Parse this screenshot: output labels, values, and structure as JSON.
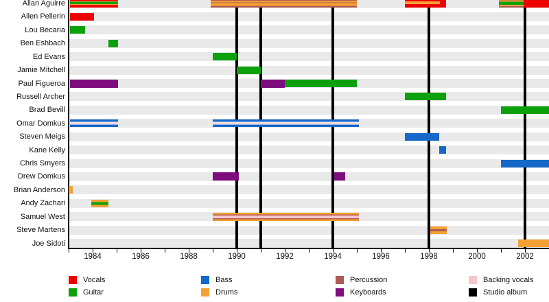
{
  "colors": {
    "vocals": "#ee0000",
    "guitar": "#0ca10c",
    "bass": "#1668c8",
    "drums": "#f4a133",
    "percussion": "#ad5a52",
    "keyboards": "#7d0c7d",
    "backing_vocals": "#f7c6cd",
    "studio_album": "#000000",
    "white": "#ffffff"
  },
  "chart_data": {
    "type": "timeline",
    "x_axis": {
      "year_start": 1983,
      "year_end": 2003,
      "tick_step": 1,
      "labeled_years": [
        1984,
        1986,
        1988,
        1990,
        1992,
        1994,
        1996,
        1998,
        2000,
        2002
      ]
    },
    "album_release_years": [
      1990,
      1991,
      1994,
      1998,
      2002
    ],
    "members": [
      {
        "name": "Allan Aguirre",
        "bars": [
          {
            "start": 1983.05,
            "end": 1985.05,
            "h": 12,
            "stripes": [
              [
                "vocals",
                2.5
              ],
              [
                "drums",
                1
              ],
              [
                "guitar",
                3.5
              ],
              [
                "drums",
                1
              ],
              [
                "vocals",
                4
              ]
            ]
          },
          {
            "start": 1988.9,
            "end": 1995.0,
            "h": 12,
            "stripes": [
              [
                "percussion",
                2
              ],
              [
                "drums",
                2.5
              ],
              [
                "percussion",
                1
              ],
              [
                "drums",
                4
              ],
              [
                "percussion",
                2.5
              ]
            ]
          },
          {
            "start": 1997.0,
            "end": 1998.72,
            "stripes": [
              [
                "vocals",
                1
              ]
            ]
          },
          {
            "start": 1997.0,
            "end": 1998.45,
            "h": 4,
            "dy": -1.5,
            "stripes": [
              [
                "drums",
                1
              ]
            ]
          },
          {
            "start": 2000.92,
            "end": 2001.95,
            "h": 12,
            "stripes": [
              [
                "percussion",
                1.5
              ],
              [
                "drums",
                2
              ],
              [
                "guitar",
                4.5
              ],
              [
                "drums",
                2
              ],
              [
                "percussion",
                2
              ]
            ]
          },
          {
            "start": 2001.95,
            "end": 2003.1,
            "stripes": [
              [
                "vocals",
                1
              ]
            ]
          }
        ]
      },
      {
        "name": "Allen Pellerin",
        "bars": [
          {
            "start": 1983.05,
            "end": 1984.05,
            "stripes": [
              [
                "vocals",
                1
              ]
            ]
          }
        ]
      },
      {
        "name": "Lou Becaria",
        "bars": [
          {
            "start": 1983.05,
            "end": 1983.68,
            "stripes": [
              [
                "guitar",
                1
              ]
            ]
          }
        ]
      },
      {
        "name": "Ben Eshbach",
        "bars": [
          {
            "start": 1984.65,
            "end": 1985.05,
            "stripes": [
              [
                "guitar",
                1
              ]
            ]
          }
        ]
      },
      {
        "name": "Ed Evans",
        "bars": [
          {
            "start": 1989.0,
            "end": 1990.0,
            "stripes": [
              [
                "guitar",
                1
              ]
            ]
          }
        ]
      },
      {
        "name": "Jamie Mitchell",
        "bars": [
          {
            "start": 1990.0,
            "end": 1991.0,
            "stripes": [
              [
                "guitar",
                1
              ]
            ]
          }
        ]
      },
      {
        "name": "Paul Figueroa",
        "bars": [
          {
            "start": 1983.05,
            "end": 1985.05,
            "h": 12,
            "stripes": [
              [
                "keyboards",
                1
              ]
            ]
          },
          {
            "start": 1991.0,
            "end": 1992.0,
            "h": 12,
            "stripes": [
              [
                "keyboards",
                1
              ]
            ]
          },
          {
            "start": 1992.0,
            "end": 1995.0,
            "stripes": [
              [
                "guitar",
                1
              ]
            ]
          }
        ]
      },
      {
        "name": "Russell Archer",
        "bars": [
          {
            "start": 1997.0,
            "end": 1998.72,
            "stripes": [
              [
                "guitar",
                1
              ]
            ]
          }
        ]
      },
      {
        "name": "Brad Bevill",
        "bars": [
          {
            "start": 2001.0,
            "end": 2003.1,
            "stripes": [
              [
                "guitar",
                1
              ]
            ]
          }
        ]
      },
      {
        "name": "Omar Domkus",
        "bars": [
          {
            "start": 1983.05,
            "end": 1985.05,
            "stripes": [
              [
                "bass",
                3.5
              ],
              [
                "white",
                0.8
              ],
              [
                "backing_vocals",
                1.8
              ],
              [
                "white",
                0.8
              ],
              [
                "bass",
                3.5
              ]
            ]
          },
          {
            "start": 1989.0,
            "end": 1995.08,
            "stripes": [
              [
                "bass",
                3.5
              ],
              [
                "white",
                0.8
              ],
              [
                "backing_vocals",
                1.8
              ],
              [
                "white",
                0.8
              ],
              [
                "bass",
                3.5
              ]
            ]
          }
        ]
      },
      {
        "name": "Steven Meigs",
        "bars": [
          {
            "start": 1997.0,
            "end": 1998.42,
            "stripes": [
              [
                "bass",
                1
              ]
            ]
          }
        ]
      },
      {
        "name": "Kane Kelly",
        "bars": [
          {
            "start": 1998.42,
            "end": 1998.72,
            "stripes": [
              [
                "bass",
                1
              ]
            ]
          }
        ]
      },
      {
        "name": "Chris Smyers",
        "bars": [
          {
            "start": 2001.0,
            "end": 2003.1,
            "stripes": [
              [
                "bass",
                1
              ]
            ]
          }
        ]
      },
      {
        "name": "Drew Domkus",
        "bars": [
          {
            "start": 1989.0,
            "end": 1990.08,
            "h": 12,
            "stripes": [
              [
                "keyboards",
                1
              ]
            ]
          },
          {
            "start": 1994.05,
            "end": 1994.5,
            "h": 12,
            "stripes": [
              [
                "keyboards",
                1
              ]
            ]
          }
        ]
      },
      {
        "name": "Brian Anderson",
        "bars": [
          {
            "start": 1983.0,
            "end": 1983.18,
            "stripes": [
              [
                "drums",
                1
              ]
            ]
          }
        ]
      },
      {
        "name": "Andy Zachari",
        "bars": [
          {
            "start": 1983.95,
            "end": 1984.65,
            "stripes": [
              [
                "drums",
                3
              ],
              [
                "guitar",
                3.2
              ],
              [
                "drums",
                3
              ]
            ]
          }
        ]
      },
      {
        "name": "Samuel West",
        "bars": [
          {
            "start": 1989.0,
            "end": 1995.08,
            "h": 12,
            "stripes": [
              [
                "drums",
                2.3
              ],
              [
                "percussion",
                1.2
              ],
              [
                "backing_vocals",
                3.8
              ],
              [
                "percussion",
                1.2
              ],
              [
                "drums",
                2.3
              ]
            ]
          }
        ]
      },
      {
        "name": "Steve Martens",
        "bars": [
          {
            "start": 1998.05,
            "end": 1998.74,
            "stripes": [
              [
                "drums",
                3.2
              ],
              [
                "percussion",
                2.4
              ],
              [
                "drums",
                3.2
              ]
            ]
          }
        ]
      },
      {
        "name": "Joe Sidoti",
        "bars": [
          {
            "start": 2001.7,
            "end": 2003.1,
            "stripes": [
              [
                "drums",
                1
              ]
            ]
          }
        ]
      }
    ],
    "legend": [
      {
        "label": "Vocals",
        "role": "vocals",
        "col": 0,
        "row": 0
      },
      {
        "label": "Guitar",
        "role": "guitar",
        "col": 0,
        "row": 1
      },
      {
        "label": "Bass",
        "role": "bass",
        "col": 1,
        "row": 0
      },
      {
        "label": "Drums",
        "role": "drums",
        "col": 1,
        "row": 1
      },
      {
        "label": "Percussion",
        "role": "percussion",
        "col": 2,
        "row": 0
      },
      {
        "label": "Keyboards",
        "role": "keyboards",
        "col": 2,
        "row": 1
      },
      {
        "label": "Backing vocals",
        "role": "backing_vocals",
        "col": 3,
        "row": 0
      },
      {
        "label": "Studio album",
        "role": "studio_album",
        "col": 3,
        "row": 1
      }
    ]
  }
}
